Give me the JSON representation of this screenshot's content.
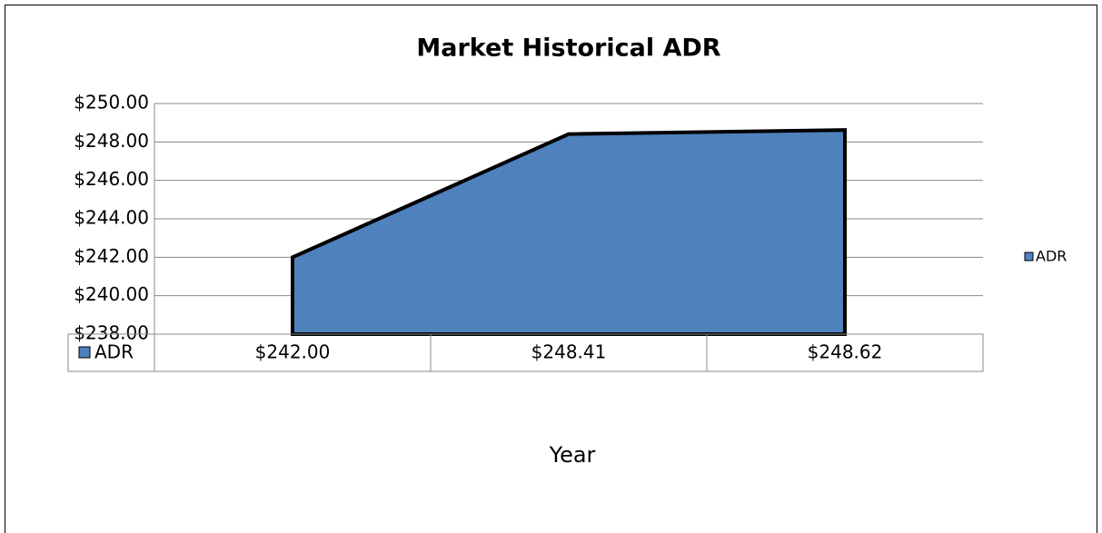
{
  "chart_data": {
    "type": "area",
    "title": "Market Historical ADR",
    "x_label": "Year",
    "categories": [
      null,
      null,
      null
    ],
    "series": [
      {
        "name": "ADR",
        "color": "#4f81bd",
        "values": [
          242,
          248.41,
          248.62
        ],
        "value_labels": [
          "$242.00",
          "$248.41",
          "$248.62"
        ]
      }
    ],
    "ylim": [
      238,
      250
    ],
    "yticks": [
      {
        "value": 238,
        "label": "$238.00"
      },
      {
        "value": 240,
        "label": "$240.00"
      },
      {
        "value": 242,
        "label": "$242.00"
      },
      {
        "value": 244,
        "label": "$244.00"
      },
      {
        "value": 246,
        "label": "$246.00"
      },
      {
        "value": 248,
        "label": "$248.00"
      },
      {
        "value": 250,
        "label": "$250.00"
      }
    ],
    "grid": true,
    "legend": "right"
  }
}
